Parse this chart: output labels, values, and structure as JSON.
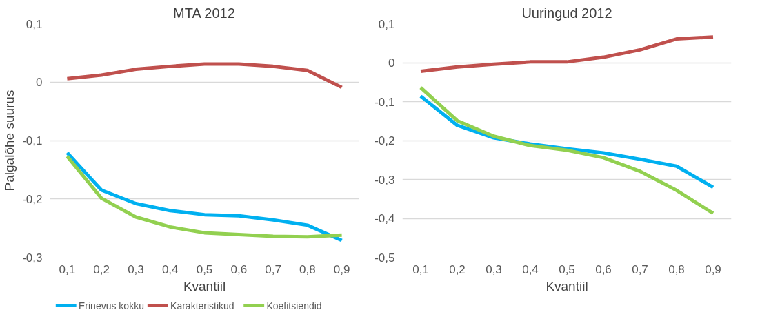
{
  "chart_data": [
    {
      "type": "line",
      "title": "MTA 2012",
      "xlabel": "Kvantiil",
      "ylabel": "Palgalõhe suurus",
      "categories": [
        "0,1",
        "0,2",
        "0,3",
        "0,4",
        "0,5",
        "0,6",
        "0,7",
        "0,8",
        "0,9"
      ],
      "ylim": [
        -0.3,
        0.1
      ],
      "yticks": [
        {
          "value": -0.3,
          "label": "-0,3"
        },
        {
          "value": -0.2,
          "label": "-0,2"
        },
        {
          "value": -0.1,
          "label": "-0,1"
        },
        0,
        {
          "value": 0.1,
          "label": "0,1"
        }
      ],
      "grid": "y",
      "legend": "bottom",
      "marker": "none",
      "line_style": "solid",
      "series": [
        {
          "name": "Erinevus kokku",
          "color": "#00b0f0",
          "values": [
            -0.121,
            -0.185,
            -0.208,
            -0.22,
            -0.227,
            -0.229,
            -0.236,
            -0.245,
            -0.271
          ]
        },
        {
          "name": "Karakteristikud",
          "color": "#c0504d",
          "values": [
            0.006,
            0.012,
            0.022,
            0.027,
            0.031,
            0.031,
            0.027,
            0.02,
            -0.009
          ]
        },
        {
          "name": "Koefitsiendid",
          "color": "#92d050",
          "values": [
            -0.127,
            -0.199,
            -0.231,
            -0.248,
            -0.258,
            -0.261,
            -0.264,
            -0.265,
            -0.262
          ]
        }
      ]
    },
    {
      "type": "line",
      "title": "Uuringud 2012",
      "xlabel": "Kvantiil",
      "categories": [
        "0,1",
        "0,2",
        "0,3",
        "0,4",
        "0,5",
        "0,6",
        "0,7",
        "0,8",
        "0,9"
      ],
      "ylim": [
        -0.5,
        0.1
      ],
      "yticks": [
        {
          "value": -0.5,
          "label": "-0,5"
        },
        {
          "value": -0.4,
          "label": "-0,4"
        },
        {
          "value": -0.3,
          "label": "-0,3"
        },
        {
          "value": -0.2,
          "label": "-0,2"
        },
        {
          "value": -0.1,
          "label": "-0,1"
        },
        0,
        {
          "value": 0.1,
          "label": "0,1"
        }
      ],
      "grid": "y",
      "marker": "none",
      "line_style": "solid",
      "series": [
        {
          "color": "#00b0f0",
          "values": [
            -0.086,
            -0.161,
            -0.193,
            -0.209,
            -0.221,
            -0.232,
            -0.248,
            -0.266,
            -0.32
          ]
        },
        {
          "color": "#c0504d",
          "values": [
            -0.022,
            -0.011,
            -0.004,
            0.002,
            0.002,
            0.014,
            0.033,
            0.061,
            0.066
          ]
        },
        {
          "color": "#92d050",
          "values": [
            -0.064,
            -0.149,
            -0.189,
            -0.213,
            -0.225,
            -0.244,
            -0.279,
            -0.328,
            -0.387
          ]
        }
      ]
    }
  ]
}
